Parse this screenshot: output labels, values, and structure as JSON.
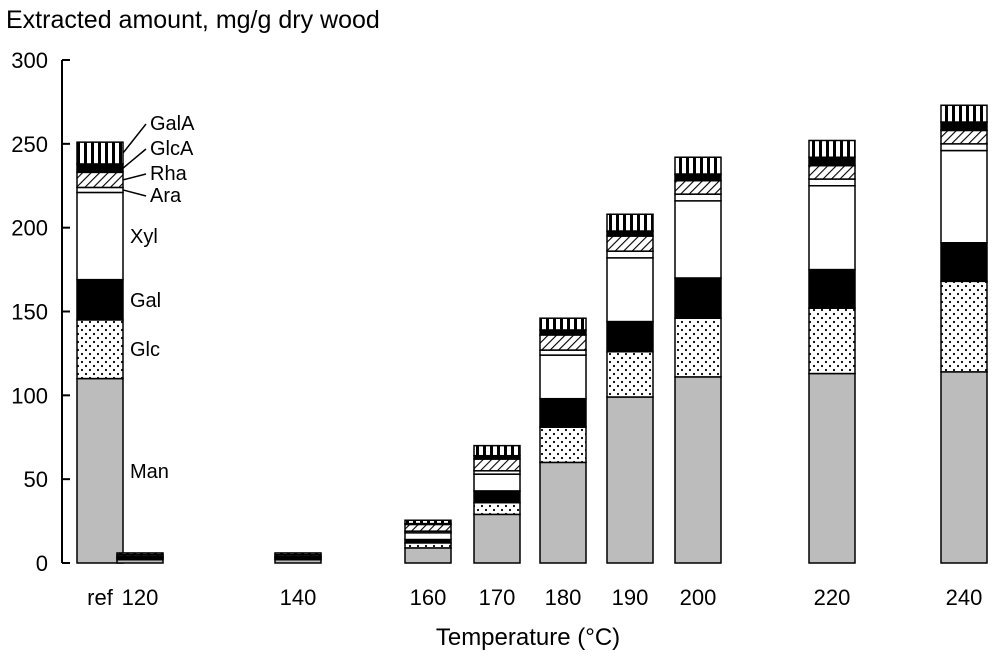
{
  "chart_data": {
    "type": "bar",
    "stacked": true,
    "title": "Extracted amount, mg/g dry wood",
    "xlabel": "Temperature (°C)",
    "ylabel": "",
    "ylim": [
      0,
      300
    ],
    "yticks": [
      "0",
      "50",
      "100",
      "150",
      "200",
      "250",
      "300"
    ],
    "categories": [
      "ref",
      "120",
      "140",
      "160",
      "170",
      "180",
      "190",
      "200",
      "220",
      "240"
    ],
    "series": [
      {
        "name": "Man",
        "values": [
          110,
          2,
          2,
          9,
          29,
          60,
          99,
          111,
          113,
          114
        ]
      },
      {
        "name": "Glc",
        "values": [
          35,
          0.5,
          0.5,
          3,
          7,
          21,
          27,
          35,
          39,
          54
        ]
      },
      {
        "name": "Gal",
        "values": [
          24,
          0.5,
          0.5,
          2,
          7,
          17,
          18,
          24,
          23,
          23
        ]
      },
      {
        "name": "Xyl",
        "values": [
          52,
          0.5,
          0.5,
          4,
          10,
          26,
          38,
          46,
          50,
          55
        ]
      },
      {
        "name": "Ara",
        "values": [
          3,
          0.5,
          0.5,
          1,
          2,
          3,
          4,
          4,
          4,
          4
        ]
      },
      {
        "name": "Rha",
        "values": [
          9,
          1,
          1,
          4,
          7,
          9,
          9,
          8,
          8,
          8
        ]
      },
      {
        "name": "GlcA",
        "values": [
          5,
          0,
          0,
          0.5,
          2,
          3,
          3,
          4,
          5,
          5
        ]
      },
      {
        "name": "GalA",
        "values": [
          13,
          1,
          1,
          2,
          6,
          7,
          10,
          10,
          10,
          10
        ]
      }
    ],
    "fills": {
      "Man": "#bcbcbc",
      "Glc": "dotted",
      "Gal": "#000000",
      "Xyl": "#ffffff",
      "Ara": "#ffffff",
      "Rha": "diagonal-hatch",
      "GlcA": "#000000",
      "GalA": "vertical-stripes"
    },
    "segment_labels_on": "ref",
    "grid": false,
    "legend": "none"
  }
}
